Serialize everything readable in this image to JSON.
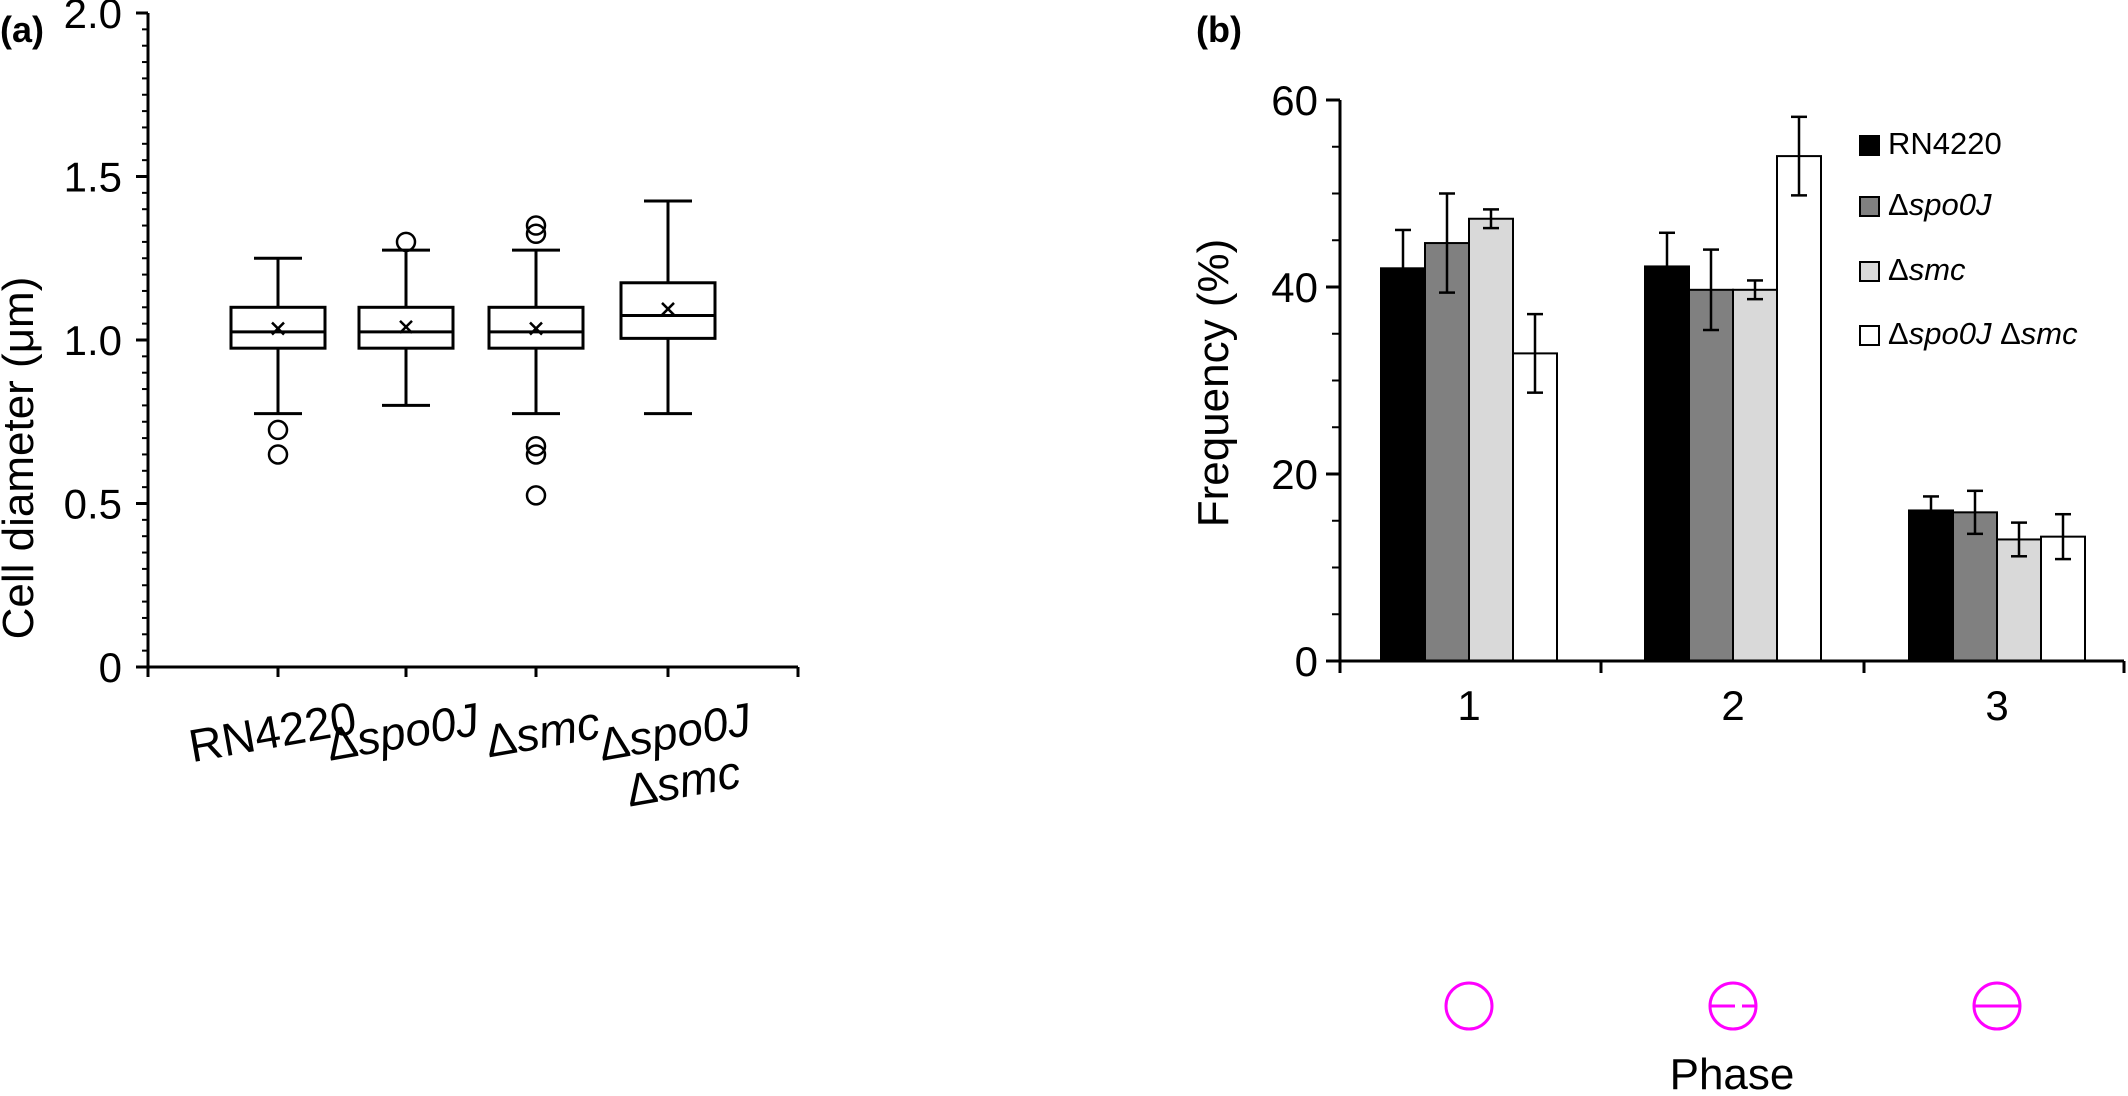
{
  "chart_data": [
    {
      "panel_label": "(a)",
      "type": "box",
      "ylabel": "Cell diameter (μm)",
      "ylim": [
        0,
        2.0
      ],
      "yticks": [
        {
          "value": 0,
          "label": "0"
        },
        {
          "value": 0.5,
          "label": "0.5"
        },
        {
          "value": 1.0,
          "label": "1.0"
        },
        {
          "value": 1.5,
          "label": "1.5"
        },
        {
          "value": 2.0,
          "label": "2.0"
        }
      ],
      "categories": [
        {
          "prefix": "",
          "gene": "RN4220",
          "italic": false,
          "line2_prefix": "",
          "line2": ""
        },
        {
          "prefix": "Δ",
          "gene": "spo0J",
          "italic": true,
          "line2_prefix": "",
          "line2": ""
        },
        {
          "prefix": "Δ",
          "gene": "smc",
          "italic": true,
          "line2_prefix": "",
          "line2": ""
        },
        {
          "prefix": "Δ",
          "gene": "spo0J",
          "italic": true,
          "line2_prefix": "Δ",
          "line2": "smc"
        }
      ],
      "boxes": [
        {
          "whisker_low": 0.775,
          "q1": 0.975,
          "median": 1.025,
          "q3": 1.1,
          "whisker_high": 1.25,
          "mean": 1.035,
          "outliers": [
            0.725,
            0.65
          ]
        },
        {
          "whisker_low": 0.8,
          "q1": 0.975,
          "median": 1.025,
          "q3": 1.1,
          "whisker_high": 1.275,
          "mean": 1.04,
          "outliers": [
            1.3
          ]
        },
        {
          "whisker_low": 0.775,
          "q1": 0.975,
          "median": 1.025,
          "q3": 1.1,
          "whisker_high": 1.275,
          "mean": 1.035,
          "outliers": [
            1.35,
            1.325,
            0.675,
            0.65,
            0.525
          ]
        },
        {
          "whisker_low": 0.775,
          "q1": 1.005,
          "median": 1.075,
          "q3": 1.175,
          "whisker_high": 1.425,
          "mean": 1.095,
          "outliers": []
        }
      ]
    },
    {
      "panel_label": "(b)",
      "type": "bar",
      "xlabel": "Phase",
      "ylabel": "Frequency (%)",
      "ylim": [
        0,
        60
      ],
      "yticks": [
        {
          "value": 0,
          "label": "0"
        },
        {
          "value": 20,
          "label": "20"
        },
        {
          "value": 40,
          "label": "40"
        },
        {
          "value": 60,
          "label": "60"
        }
      ],
      "categories": [
        "1",
        "2",
        "3"
      ],
      "phase_icons": [
        "circle",
        "circle-half-line",
        "circle-full-line"
      ],
      "icon_color": "#ff00ff",
      "legend_position": "top-right",
      "series": [
        {
          "name_parts": [
            {
              "t": "RN4220",
              "i": false
            }
          ],
          "color": "#000000",
          "values": [
            42.0,
            42.2,
            16.1
          ],
          "errors": [
            4.1,
            3.6,
            1.5
          ]
        },
        {
          "name_parts": [
            {
              "t": "Δ",
              "i": false
            },
            {
              "t": "spo0J",
              "i": true
            }
          ],
          "color": "#808080",
          "values": [
            44.7,
            39.7,
            15.9
          ],
          "errors": [
            5.3,
            4.3,
            2.3
          ]
        },
        {
          "name_parts": [
            {
              "t": "Δ",
              "i": false
            },
            {
              "t": "smc",
              "i": true
            }
          ],
          "color": "#d9d9d9",
          "values": [
            47.3,
            39.7,
            13.0
          ],
          "errors": [
            1.0,
            1.0,
            1.8
          ]
        },
        {
          "name_parts": [
            {
              "t": "Δ",
              "i": false
            },
            {
              "t": "spo0J",
              "i": true
            },
            {
              "t": " Δ",
              "i": false
            },
            {
              "t": "smc",
              "i": true
            }
          ],
          "color": "#ffffff",
          "values": [
            32.9,
            54.0,
            13.3
          ],
          "errors": [
            4.2,
            4.2,
            2.4
          ]
        }
      ]
    }
  ]
}
